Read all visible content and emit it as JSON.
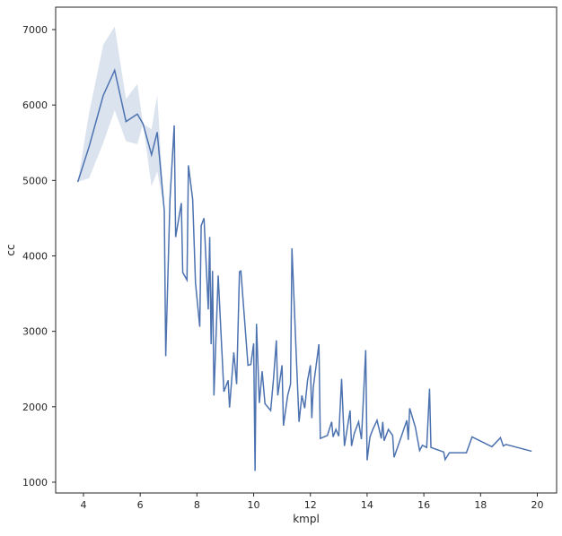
{
  "chart_data": {
    "type": "line",
    "xlabel": "kmpl",
    "ylabel": "cc",
    "x": [
      3.8,
      4.2,
      4.7,
      5.1,
      5.5,
      5.9,
      6.1,
      6.4,
      6.6,
      6.85,
      6.9,
      7.05,
      7.2,
      7.25,
      7.45,
      7.5,
      7.65,
      7.7,
      7.85,
      7.95,
      8.1,
      8.15,
      8.25,
      8.4,
      8.45,
      8.5,
      8.55,
      8.6,
      8.75,
      8.8,
      8.95,
      9.1,
      9.15,
      9.3,
      9.4,
      9.5,
      9.55,
      9.8,
      9.9,
      10.0,
      10.05,
      10.1,
      10.2,
      10.3,
      10.4,
      10.6,
      10.7,
      10.8,
      10.85,
      11.0,
      11.05,
      11.2,
      11.3,
      11.35,
      11.5,
      11.6,
      11.7,
      11.8,
      11.9,
      12.0,
      12.05,
      12.1,
      12.3,
      12.35,
      12.6,
      12.75,
      12.8,
      12.9,
      13.0,
      13.1,
      13.2,
      13.4,
      13.45,
      13.55,
      13.7,
      13.8,
      13.95,
      14.0,
      14.1,
      14.2,
      14.35,
      14.5,
      14.55,
      14.6,
      14.75,
      14.9,
      14.95,
      15.2,
      15.4,
      15.45,
      15.5,
      15.7,
      15.85,
      15.95,
      16.1,
      16.2,
      16.25,
      16.7,
      16.75,
      16.9,
      17.5,
      17.7,
      18.4,
      18.7,
      18.8,
      18.9,
      19.8
    ],
    "series": [
      {
        "color": "#4c72b0",
        "values": [
          4980,
          5450,
          6130,
          6460,
          5780,
          5880,
          5750,
          5340,
          5640,
          4600,
          2670,
          4750,
          5730,
          4250,
          4700,
          3780,
          3680,
          5200,
          4750,
          3640,
          3060,
          4400,
          4500,
          3290,
          4250,
          2830,
          3800,
          2150,
          3740,
          3350,
          2200,
          2350,
          1990,
          2720,
          2300,
          3790,
          3800,
          2550,
          2560,
          2840,
          1150,
          3100,
          2050,
          2470,
          2040,
          1950,
          2370,
          2880,
          2150,
          2550,
          1750,
          2150,
          2300,
          4100,
          2700,
          1800,
          2150,
          1980,
          2350,
          2550,
          1850,
          2250,
          2830,
          1580,
          1620,
          1800,
          1600,
          1700,
          1610,
          2370,
          1480,
          1950,
          1480,
          1650,
          1800,
          1570,
          2750,
          1290,
          1600,
          1700,
          1820,
          1580,
          1800,
          1550,
          1700,
          1620,
          1330,
          1600,
          1820,
          1560,
          1980,
          1730,
          1420,
          1490,
          1460,
          2240,
          1460,
          1400,
          1300,
          1390,
          1390,
          1600,
          1470,
          1590,
          1480,
          1500,
          1410
        ]
      }
    ],
    "band": {
      "color": "#4c72b0",
      "x": [
        3.8,
        4.2,
        4.7,
        5.1,
        5.5,
        5.9,
        6.1,
        6.4,
        6.6,
        6.85
      ],
      "lower": [
        4980,
        5030,
        5500,
        5930,
        5520,
        5480,
        5750,
        4920,
        5120,
        4600
      ],
      "upper": [
        4980,
        5900,
        6800,
        7040,
        6080,
        6280,
        5750,
        5680,
        6130,
        4600
      ]
    },
    "xlim": [
      3.02,
      20.68
    ],
    "ylim": [
      857,
      7297
    ],
    "xticks": [
      4,
      6,
      8,
      10,
      12,
      14,
      16,
      18,
      20
    ],
    "yticks": [
      1000,
      2000,
      3000,
      4000,
      5000,
      6000,
      7000
    ]
  }
}
